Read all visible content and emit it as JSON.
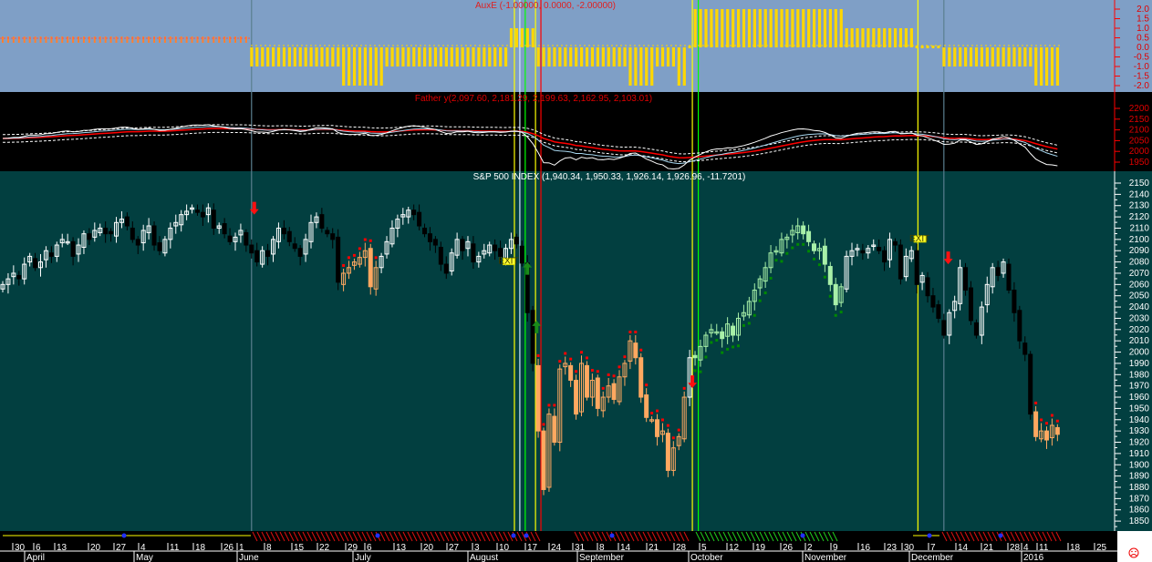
{
  "panels": {
    "aux": {
      "title": "AuxE (-1.00000, 0.0000, -2.00000)",
      "bg": "#7f9fc6",
      "axis_labels": [
        "2.0",
        "1.5",
        "1.0",
        "0.5",
        "0.0",
        "-0.5",
        "-1.0",
        "-1.5",
        "-2.0"
      ],
      "axis_values": [
        2,
        1.5,
        1,
        0.5,
        0,
        -0.5,
        -1,
        -1.5,
        -2
      ],
      "axis_color": "#ff0000"
    },
    "fathery": {
      "title": "Father y(2,097.60, 2,181.29, 2,199.63, 2,162.95, 2,103.01)",
      "axis_labels": [
        "2200",
        "2150",
        "2100",
        "2050",
        "2000",
        "1950"
      ],
      "axis_values": [
        2200,
        2150,
        2100,
        2050,
        2000,
        1950
      ],
      "axis_color": "#ff0000"
    },
    "price": {
      "title": "S&P 500 INDEX (1,940.34, 1,950.33, 1,926.14, 1,926.96, -11.7201)",
      "bg": "#023f40"
    }
  },
  "chart_data": {
    "type": "candlestick",
    "title": "S&P 500 INDEX (1,940.34, 1,950.33, 1,926.14, 1,926.96, -11.7201)",
    "ylim": [
      1845,
      2155
    ],
    "y_ticks": [
      2150,
      2140,
      2130,
      2120,
      2110,
      2100,
      2090,
      2080,
      2070,
      2060,
      2050,
      2040,
      2030,
      2020,
      2010,
      2000,
      1990,
      1980,
      1970,
      1960,
      1950,
      1940,
      1930,
      1920,
      1910,
      1900,
      1890,
      1880,
      1870,
      1860,
      1850
    ],
    "close": [
      2060,
      2065,
      2070,
      2065,
      2078,
      2085,
      2075,
      2080,
      2090,
      2085,
      2095,
      2100,
      2098,
      2085,
      2095,
      2105,
      2100,
      2108,
      2110,
      2105,
      2105,
      2115,
      2118,
      2112,
      2100,
      2095,
      2108,
      2112,
      2095,
      2090,
      2100,
      2110,
      2115,
      2122,
      2125,
      2128,
      2124,
      2120,
      2128,
      2110,
      2112,
      2105,
      2098,
      2102,
      2108,
      2095,
      2088,
      2080,
      2090,
      2085,
      2100,
      2110,
      2105,
      2098,
      2092,
      2085,
      2100,
      2115,
      2120,
      2110,
      2105,
      2100,
      2062,
      2070,
      2075,
      2080,
      2084,
      2090,
      2058,
      2075,
      2085,
      2098,
      2110,
      2118,
      2122,
      2126,
      2122,
      2112,
      2105,
      2098,
      2095,
      2078,
      2070,
      2088,
      2100,
      2090,
      2098,
      2080,
      2085,
      2090,
      2095,
      2090,
      2085,
      2092,
      2100,
      2096,
      2079,
      2035,
      1990,
      1930,
      1878,
      1945,
      1920,
      1985,
      1990,
      1975,
      1945,
      1990,
      1960,
      1975,
      1950,
      1960,
      1970,
      1958,
      1978,
      1990,
      2010,
      1995,
      1960,
      1942,
      1940,
      1925,
      1930,
      1895,
      1915,
      1925,
      1960,
      1995,
      1995,
      2005,
      2015,
      2020,
      2018,
      2012,
      2025,
      2015,
      2030,
      2035,
      2045,
      2055,
      2065,
      2075,
      2088,
      2090,
      2100,
      2102,
      2108,
      2112,
      2105,
      2098,
      2090,
      2092,
      2078,
      2060,
      2042,
      2058,
      2085,
      2090,
      2092,
      2088,
      2092,
      2095,
      2090,
      2080,
      2100,
      2095,
      2065,
      2085,
      2090,
      2060,
      2068,
      2050,
      2040,
      2030,
      2015,
      2035,
      2045,
      2075,
      2055,
      2028,
      2015,
      2040,
      2060,
      2075,
      2068,
      2080,
      2055,
      2035,
      2010,
      1998,
      1945,
      1925,
      1930,
      1922,
      1935,
      1927
    ],
    "zones": {
      "orange": [
        [
          63,
          69
        ],
        [
          99,
          126
        ],
        [
          191,
          195
        ]
      ],
      "green": [
        [
          128,
          155
        ]
      ]
    },
    "colors": {
      "up": "#ffffff",
      "down": "#000000",
      "orange": "#ffa860",
      "green": "#a8f0a8",
      "dot_red": "#ff0000",
      "dot_green": "#008800"
    },
    "aux_segments": [
      [
        0,
        45,
        0.5
      ],
      [
        46,
        62,
        -1
      ],
      [
        63,
        70,
        -2
      ],
      [
        71,
        93,
        -1
      ],
      [
        94,
        98,
        1
      ],
      [
        99,
        115,
        -1
      ],
      [
        116,
        120,
        -2
      ],
      [
        121,
        124,
        -1
      ],
      [
        125,
        126,
        -2
      ],
      [
        127,
        127,
        0
      ],
      [
        128,
        155,
        2
      ],
      [
        156,
        168,
        1
      ],
      [
        169,
        173,
        0
      ],
      [
        174,
        190,
        -1
      ],
      [
        191,
        195,
        -2
      ]
    ],
    "vlines": [
      {
        "bar": 46,
        "color": "#5a7f8f"
      },
      {
        "bar": 174,
        "color": "#5a7f8f"
      },
      {
        "bar": 94.6,
        "color": "#ffff00"
      },
      {
        "bar": 95.6,
        "color": "#cfe8ff"
      },
      {
        "bar": 96.6,
        "color": "#00ff00"
      },
      {
        "bar": 98.5,
        "color": "#ffff00"
      },
      {
        "bar": 99.5,
        "color": "#ff0000"
      },
      {
        "bar": 127.5,
        "color": "#ffff00"
      },
      {
        "bar": 128.6,
        "color": "#00ff00"
      },
      {
        "bar": 169.2,
        "color": "#ffff00"
      }
    ],
    "signals": [
      {
        "type": "sell-arrow",
        "bar": 46.5,
        "price": 2122
      },
      {
        "type": "sell-arrow",
        "bar": 174.8,
        "price": 2078
      },
      {
        "type": "sell-arrow",
        "bar": 127.5,
        "price": 1968
      },
      {
        "type": "buy-arrow",
        "bar": 97,
        "price": 2080
      },
      {
        "type": "buy-arrow",
        "bar": 98.7,
        "price": 2028
      },
      {
        "type": "exit",
        "bar": 93.5,
        "price": 2080,
        "label": "EXIT"
      },
      {
        "type": "exit",
        "bar": 169.5,
        "price": 2100,
        "label": "EXIT"
      }
    ]
  },
  "x_axis": {
    "days": [
      "30",
      "6",
      "13",
      "20",
      "27",
      "4",
      "11",
      "18",
      "26",
      "1",
      "8",
      "15",
      "22",
      "29",
      "6",
      "13",
      "20",
      "27",
      "3",
      "10",
      "17",
      "24",
      "31",
      "8",
      "14",
      "21",
      "28",
      "5",
      "12",
      "19",
      "26",
      "2",
      "9",
      "16",
      "23",
      "30",
      "7",
      "14",
      "21",
      "28",
      "4",
      "11",
      "18",
      "25"
    ],
    "months": [
      "April",
      "May",
      "June",
      "July",
      "August",
      "September",
      "October",
      "November",
      "December",
      "2016"
    ]
  },
  "status_icon": "sad-face-icon"
}
